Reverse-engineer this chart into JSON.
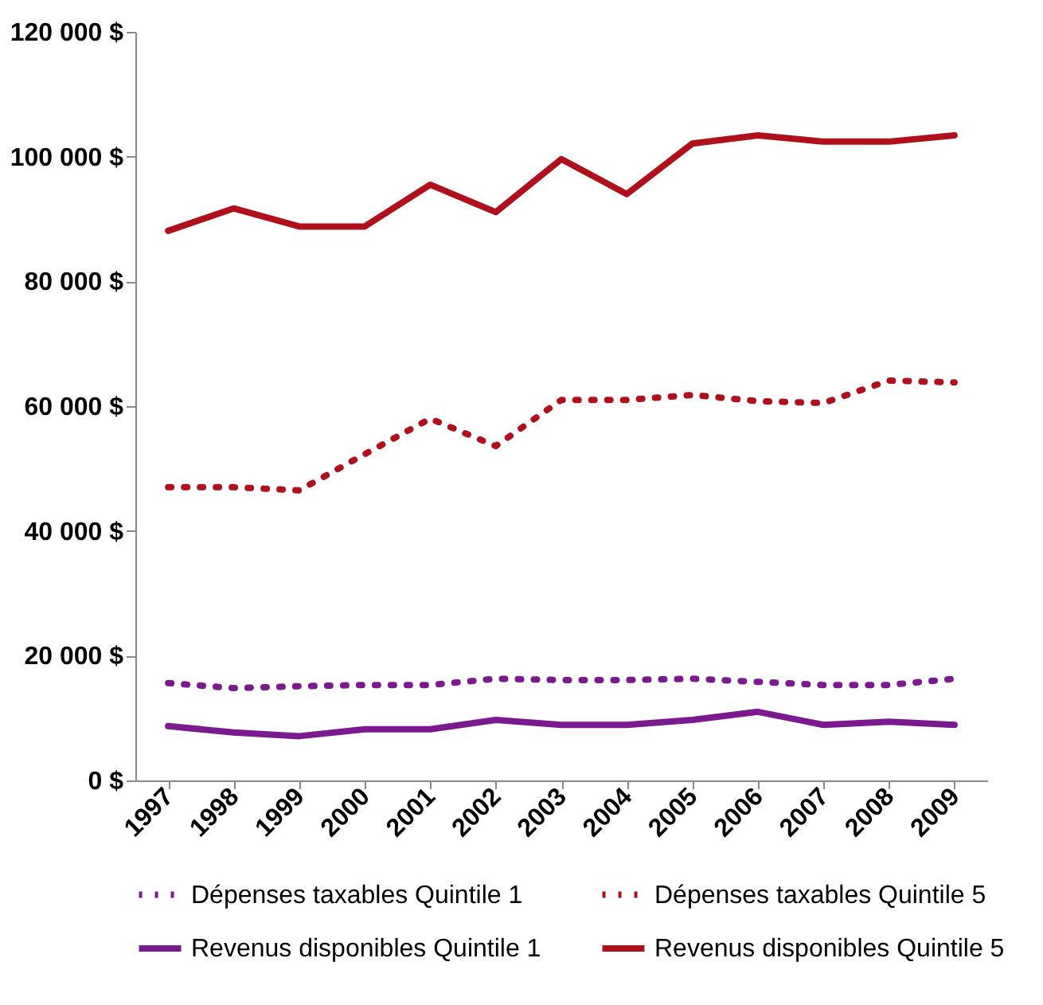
{
  "chart_data": {
    "type": "line",
    "categories": [
      "1997",
      "1998",
      "1999",
      "2000",
      "2001",
      "2002",
      "2003",
      "2004",
      "2005",
      "2006",
      "2007",
      "2008",
      "2009"
    ],
    "ylim": [
      0,
      120000
    ],
    "yticks": [
      {
        "value": 0,
        "label": "0 $"
      },
      {
        "value": 20000,
        "label": "20 000 $"
      },
      {
        "value": 40000,
        "label": "40 000 $"
      },
      {
        "value": 60000,
        "label": "60 000 $"
      },
      {
        "value": 80000,
        "label": "80 000 $"
      },
      {
        "value": 100000,
        "label": "100 000 $"
      },
      {
        "value": 120000,
        "label": "120 000 $"
      }
    ],
    "grid": false,
    "legend": "bottom",
    "marker": "none",
    "series": [
      {
        "name": "Dépenses taxables Quintile 1",
        "color": "#7b1a8e",
        "line_style": "dotted",
        "values": [
          15600,
          14800,
          15100,
          15300,
          15300,
          16300,
          16100,
          16100,
          16300,
          15800,
          15300,
          15300,
          16300
        ]
      },
      {
        "name": "Dépenses taxables Quintile 5",
        "color": "#b0101c",
        "line_style": "dotted",
        "values": [
          47000,
          47000,
          46500,
          52300,
          58000,
          53600,
          61000,
          61000,
          61800,
          60800,
          60500,
          64100,
          63800
        ]
      },
      {
        "name": "Revenus disponibles Quintile 1",
        "color": "#7b1a8e",
        "line_style": "solid",
        "values": [
          8700,
          7700,
          7100,
          8200,
          8200,
          9700,
          8900,
          8900,
          9700,
          11000,
          8900,
          9400,
          8900
        ]
      },
      {
        "name": "Revenus disponibles Quintile 5",
        "color": "#b0101c",
        "line_style": "solid",
        "values": [
          88100,
          91700,
          88800,
          88800,
          95500,
          91100,
          99600,
          94000,
          102100,
          103400,
          102400,
          102400,
          103400
        ]
      }
    ]
  }
}
